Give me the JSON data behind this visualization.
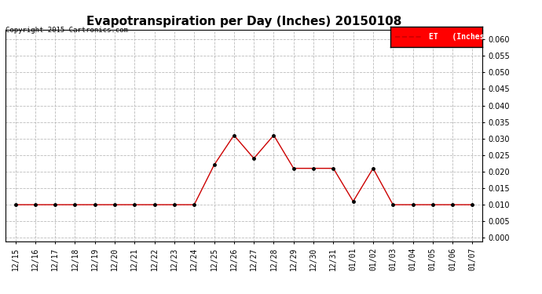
{
  "title": "Evapotranspiration per Day (Inches) 20150108",
  "copyright": "Copyright 2015 Cartronics.com",
  "legend_label": "ET   (Inches)",
  "legend_bg": "#ff0000",
  "legend_text_color": "#ffffff",
  "line_color": "#cc0000",
  "marker_color": "#000000",
  "background_color": "#ffffff",
  "grid_color": "#bbbbbb",
  "ylim": [
    -0.001,
    0.063
  ],
  "yticks": [
    0.0,
    0.005,
    0.01,
    0.015,
    0.02,
    0.025,
    0.03,
    0.035,
    0.04,
    0.045,
    0.05,
    0.055,
    0.06
  ],
  "dates": [
    "12/15",
    "12/16",
    "12/17",
    "12/18",
    "12/19",
    "12/20",
    "12/21",
    "12/22",
    "12/23",
    "12/24",
    "12/25",
    "12/26",
    "12/27",
    "12/28",
    "12/29",
    "12/30",
    "12/31",
    "01/01",
    "01/02",
    "01/03",
    "01/04",
    "01/05",
    "01/06",
    "01/07"
  ],
  "values": [
    0.01,
    0.01,
    0.01,
    0.01,
    0.01,
    0.01,
    0.01,
    0.01,
    0.01,
    0.01,
    0.022,
    0.031,
    0.024,
    0.031,
    0.021,
    0.021,
    0.021,
    0.011,
    0.021,
    0.01,
    0.01,
    0.01,
    0.01,
    0.01
  ]
}
